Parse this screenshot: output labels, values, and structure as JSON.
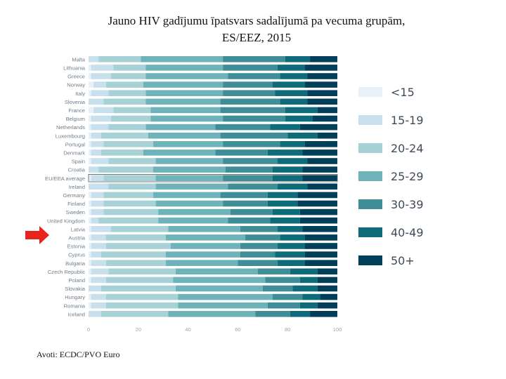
{
  "slide": {
    "title_line1": "Jauno HIV gadījumu īpatsvars sadalījumā pa vecuma grupām,",
    "title_line2": "ES/EEZ, 2015",
    "source": "Avoti: ECDC/PVO Euro",
    "highlight_country": "Latvia",
    "arrow_color": "#e8231c"
  },
  "chart_data": {
    "type": "bar",
    "orientation": "horizontal",
    "stacked": true,
    "title": "Jauno HIV gadījumu īpatsvars sadalījumā pa vecuma grupām, ES/EEZ, 2015",
    "xlabel": "",
    "ylabel": "",
    "xlim": [
      0,
      100
    ],
    "xticks": [
      "0",
      "20",
      "40",
      "60",
      "80",
      "100"
    ],
    "legend_position": "right",
    "grid": false,
    "categories": [
      "Malta",
      "Lithuania",
      "Greece",
      "Norway",
      "Italy",
      "Slovenia",
      "France",
      "Belgium",
      "Netherlands",
      "Luxembourg",
      "Portugal",
      "Denmark",
      "Spain",
      "Croatia",
      "EU/EEA average",
      "Ireland",
      "Germany",
      "Finland",
      "Sweden",
      "United Kingdom",
      "Latvia",
      "Austria",
      "Estonia",
      "Cyprus",
      "Bulgaria",
      "Czech Republic",
      "Poland",
      "Slovakia",
      "Hungary",
      "Romania",
      "Iceland"
    ],
    "series": [
      {
        "name": "<15",
        "color": "#e9f1f8",
        "values": [
          0,
          1,
          1,
          2,
          1,
          0,
          2,
          1,
          1,
          1,
          1,
          1,
          1,
          0,
          1,
          0,
          1,
          1,
          1,
          1,
          1,
          1,
          1,
          1,
          1,
          1,
          1,
          0,
          1,
          1,
          0
        ]
      },
      {
        "name": "15-19",
        "color": "#c8dfed",
        "values": [
          4,
          9,
          8,
          5,
          7,
          6,
          8,
          8,
          7,
          4,
          5,
          4,
          7,
          4,
          5,
          8,
          5,
          5,
          5,
          3,
          8,
          6,
          6,
          4,
          6,
          7,
          6,
          5,
          6,
          6,
          5
        ]
      },
      {
        "name": "20-24",
        "color": "#a6d2d6",
        "values": [
          17,
          13,
          14,
          15,
          15,
          17,
          15,
          16,
          15,
          19,
          20,
          17,
          19,
          22,
          21,
          19,
          20,
          21,
          22,
          24,
          23,
          24,
          26,
          26,
          24,
          27,
          27,
          30,
          29,
          29,
          27
        ]
      },
      {
        "name": "25-29",
        "color": "#6fb3ba",
        "values": [
          33,
          31,
          33,
          32,
          31,
          30,
          28,
          29,
          28,
          29,
          28,
          29,
          27,
          29,
          27,
          29,
          27,
          27,
          29,
          28,
          29,
          32,
          28,
          30,
          29,
          33,
          37,
          35,
          38,
          36,
          35
        ]
      },
      {
        "name": "30-39",
        "color": "#3f8d97",
        "values": [
          25,
          22,
          21,
          20,
          21,
          24,
          26,
          25,
          22,
          27,
          23,
          21,
          22,
          19,
          20,
          20,
          19,
          18,
          17,
          17,
          15,
          14,
          15,
          14,
          16,
          13,
          14,
          12,
          12,
          13,
          14
        ]
      },
      {
        "name": "40-49",
        "color": "#0e6b79",
        "values": [
          10,
          11,
          11,
          13,
          13,
          11,
          13,
          11,
          12,
          12,
          10,
          14,
          12,
          12,
          12,
          12,
          12,
          12,
          11,
          12,
          10,
          10,
          11,
          12,
          11,
          11,
          7,
          10,
          7,
          7,
          8
        ]
      },
      {
        "name": "50+",
        "color": "#003e5a",
        "values": [
          11,
          13,
          12,
          13,
          12,
          12,
          8,
          10,
          15,
          8,
          13,
          14,
          12,
          14,
          14,
          12,
          16,
          16,
          15,
          15,
          14,
          13,
          13,
          13,
          13,
          8,
          8,
          8,
          7,
          8,
          11
        ]
      }
    ]
  }
}
